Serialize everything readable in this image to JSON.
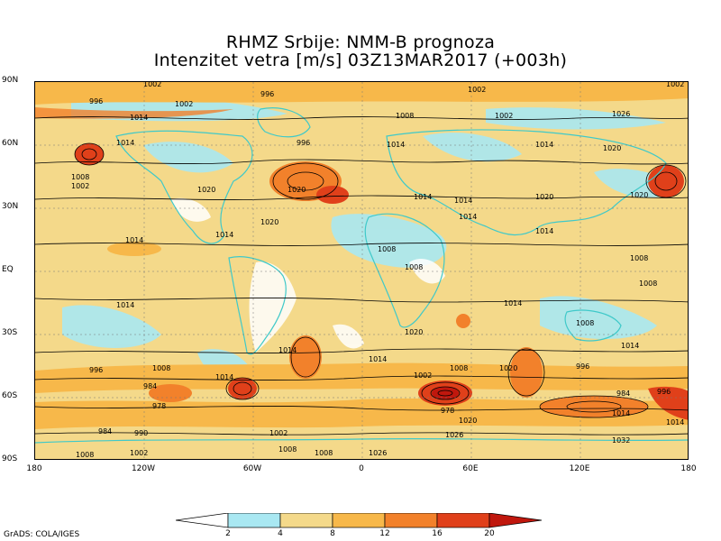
{
  "title_line1": "RHMZ Srbije: NMM-B prognoza",
  "title_line2": "Intenzitet vetra [m/s] 03Z13MAR2017 (+003h)",
  "credit": "GrADS: COLA/IGES",
  "lat_labels": [
    "90N",
    "60N",
    "30N",
    "EQ",
    "30S",
    "60S",
    "90S"
  ],
  "lon_labels": [
    "180",
    "120W",
    "60W",
    "0",
    "60E",
    "120E",
    "180"
  ],
  "colorbar": {
    "tick_labels": [
      "2",
      "4",
      "8",
      "12",
      "16",
      "20"
    ],
    "colors": [
      "#ffffff",
      "#a9e8f2",
      "#f4d98a",
      "#f7b84a",
      "#f2812b",
      "#e0401a",
      "#c0170d"
    ]
  },
  "colors": {
    "background_fill": "#f4d98a",
    "coastline": "#3fc9c9",
    "isobar": "#000000"
  },
  "isobar_labels": [
    "1002",
    "1008",
    "1014",
    "1020",
    "1026",
    "1032",
    "996",
    "990",
    "984",
    "978"
  ]
}
